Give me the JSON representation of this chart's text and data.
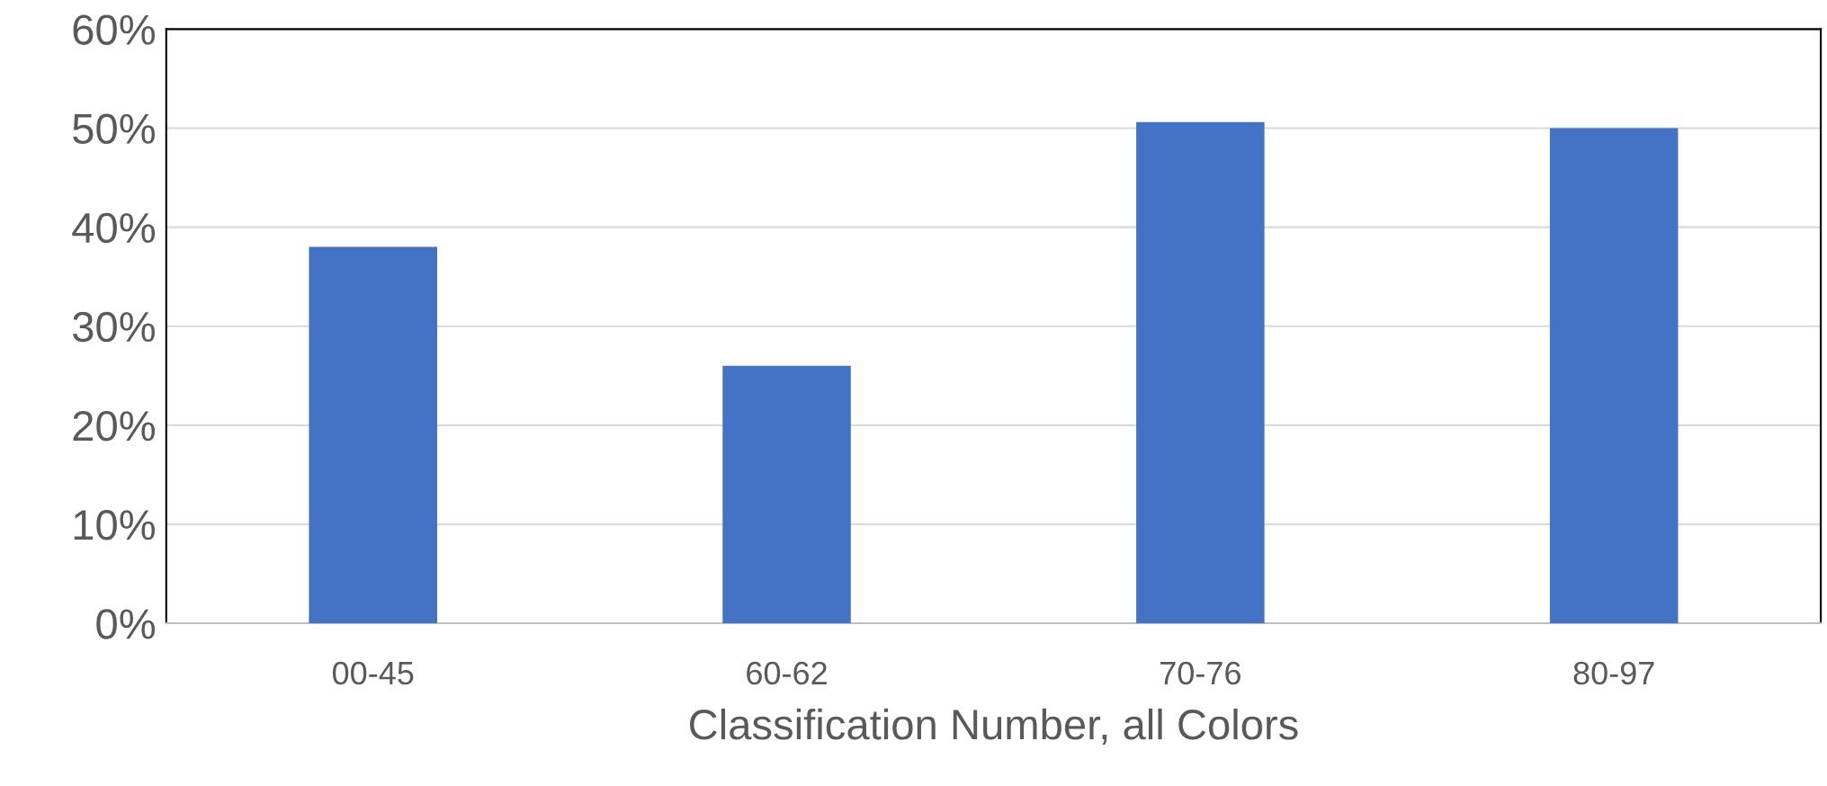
{
  "chart_data": {
    "type": "bar",
    "xlabel": "Classification Number, all Colors",
    "categories": [
      "00-45",
      "60-62",
      "70-76",
      "80-97"
    ],
    "values": [
      38,
      26,
      50.6,
      50
    ],
    "color": "#4472c4",
    "ylim": [
      0,
      60
    ],
    "yticks": [
      {
        "value": 0,
        "label": "0%"
      },
      {
        "value": 10,
        "label": "10%"
      },
      {
        "value": 20,
        "label": "20%"
      },
      {
        "value": 30,
        "label": "30%"
      },
      {
        "value": 40,
        "label": "40%"
      },
      {
        "value": 50,
        "label": "50%"
      },
      {
        "value": 60,
        "label": "60%"
      }
    ],
    "grid": "y"
  }
}
